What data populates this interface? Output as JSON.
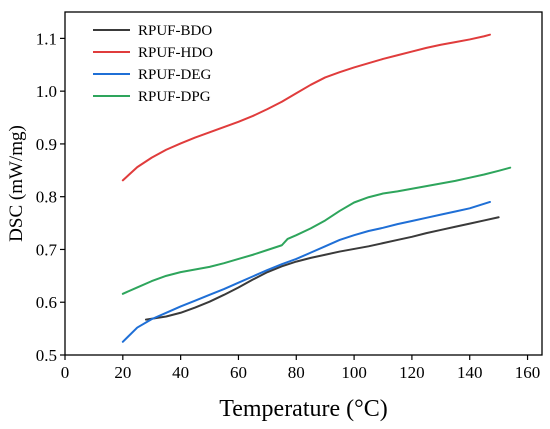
{
  "chart_data": {
    "type": "line",
    "xlabel": "Temperature (°C)",
    "ylabel": "DSC (mW/mg)",
    "xlim": [
      0,
      165
    ],
    "ylim": [
      0.5,
      1.15
    ],
    "xticks": [
      0,
      20,
      40,
      60,
      80,
      100,
      120,
      140,
      160
    ],
    "yticks": [
      0.5,
      0.6,
      0.7,
      0.8,
      0.9,
      1.0,
      1.1
    ],
    "ytick_labels": [
      "0.5",
      "0.6",
      "0.7",
      "0.8",
      "0.9",
      "1.0",
      "1.1"
    ],
    "legend_position": "top-left",
    "series": [
      {
        "name": "RPUF-BDO",
        "color": "#3a3a3a",
        "x": [
          28,
          35,
          40,
          45,
          50,
          55,
          60,
          65,
          70,
          75,
          80,
          85,
          90,
          95,
          100,
          105,
          110,
          115,
          120,
          125,
          130,
          135,
          140,
          145,
          150
        ],
        "y": [
          0.567,
          0.573,
          0.58,
          0.59,
          0.601,
          0.614,
          0.628,
          0.643,
          0.657,
          0.668,
          0.677,
          0.684,
          0.69,
          0.696,
          0.701,
          0.706,
          0.712,
          0.718,
          0.724,
          0.731,
          0.737,
          0.743,
          0.749,
          0.755,
          0.761
        ]
      },
      {
        "name": "RPUF-HDO",
        "color": "#e03c3c",
        "x": [
          20,
          25,
          30,
          35,
          40,
          45,
          50,
          55,
          60,
          65,
          70,
          75,
          80,
          85,
          90,
          95,
          100,
          105,
          110,
          115,
          120,
          125,
          130,
          135,
          140,
          145,
          147
        ],
        "y": [
          0.831,
          0.856,
          0.874,
          0.889,
          0.901,
          0.912,
          0.922,
          0.932,
          0.942,
          0.953,
          0.966,
          0.98,
          0.996,
          1.012,
          1.026,
          1.036,
          1.045,
          1.053,
          1.061,
          1.068,
          1.075,
          1.082,
          1.088,
          1.093,
          1.098,
          1.104,
          1.107
        ]
      },
      {
        "name": "RPUF-DEG",
        "color": "#1f6fd6",
        "x": [
          20,
          25,
          30,
          35,
          40,
          45,
          50,
          55,
          60,
          65,
          70,
          75,
          80,
          85,
          90,
          95,
          100,
          105,
          110,
          115,
          120,
          125,
          130,
          135,
          140,
          147
        ],
        "y": [
          0.525,
          0.552,
          0.568,
          0.58,
          0.592,
          0.603,
          0.614,
          0.625,
          0.637,
          0.649,
          0.661,
          0.672,
          0.682,
          0.694,
          0.706,
          0.718,
          0.727,
          0.735,
          0.741,
          0.748,
          0.754,
          0.76,
          0.766,
          0.772,
          0.778,
          0.79
        ]
      },
      {
        "name": "RPUF-DPG",
        "color": "#2ea55c",
        "x": [
          20,
          25,
          30,
          35,
          40,
          45,
          50,
          55,
          60,
          65,
          70,
          75,
          77,
          80,
          85,
          90,
          95,
          100,
          105,
          110,
          115,
          120,
          125,
          130,
          135,
          140,
          145,
          150,
          154
        ],
        "y": [
          0.616,
          0.628,
          0.64,
          0.65,
          0.657,
          0.662,
          0.667,
          0.674,
          0.682,
          0.69,
          0.699,
          0.708,
          0.72,
          0.727,
          0.74,
          0.755,
          0.773,
          0.789,
          0.799,
          0.806,
          0.81,
          0.815,
          0.82,
          0.825,
          0.83,
          0.836,
          0.842,
          0.849,
          0.855
        ]
      }
    ]
  }
}
